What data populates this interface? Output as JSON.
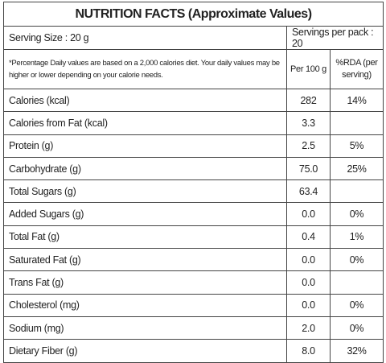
{
  "title": "NUTRITION FACTS (Approximate Values)",
  "serving_size": "Serving Size : 20 g",
  "servings_per_pack": "Servings per pack : 20",
  "note": "*Percentage Daily values are based on a 2,000 calories diet. Your daily values may be higher or lower depending on your calorie needs.",
  "columns": [
    "Per 100 g",
    "%RDA (per serving)"
  ],
  "rows": [
    [
      "Calories (kcal)",
      "282",
      "14%"
    ],
    [
      "Calories from Fat (kcal)",
      "3.3",
      null
    ],
    [
      "Protein (g)",
      "2.5",
      "5%"
    ],
    [
      "Carbohydrate (g)",
      "75.0",
      "25%"
    ],
    [
      "Total Sugars (g)",
      "63.4",
      null
    ],
    [
      "Added Sugars (g)",
      "0.0",
      "0%"
    ],
    [
      "Total Fat (g)",
      "0.4",
      "1%"
    ],
    [
      "Saturated Fat (g)",
      "0.0",
      "0%"
    ],
    [
      "Trans Fat (g)",
      "0.0",
      null
    ],
    [
      "Cholesterol (mg)",
      "0.0",
      "0%"
    ],
    [
      "Sodium (mg)",
      "2.0",
      "0%"
    ],
    [
      "Dietary Fiber (g)",
      "8.0",
      "32%"
    ]
  ]
}
